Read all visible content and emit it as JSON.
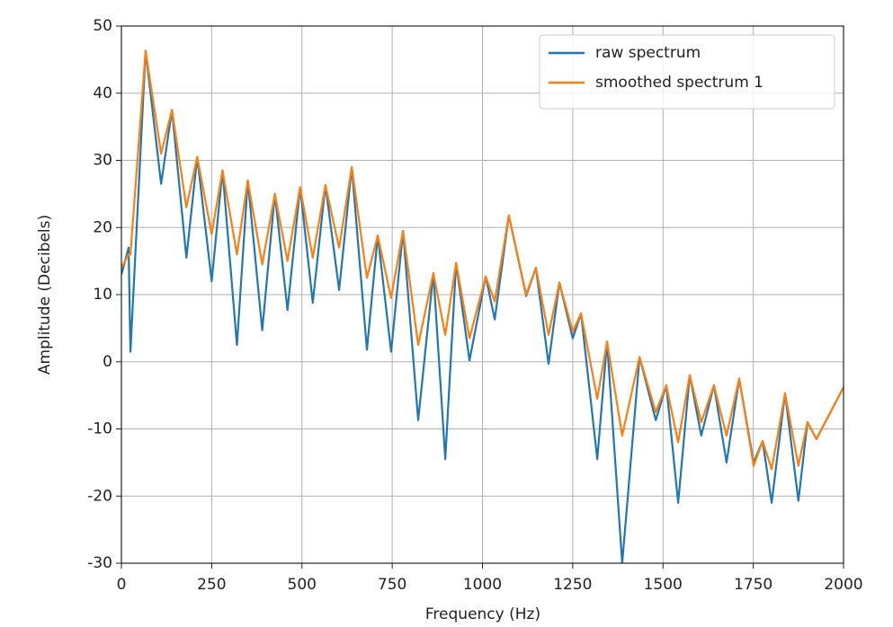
{
  "chart_data": {
    "type": "line",
    "xlabel": "Frequency (Hz)",
    "ylabel": "Amplitude (Decibels)",
    "x": [
      0,
      20,
      25,
      67,
      110,
      140,
      180,
      210,
      250,
      280,
      320,
      350,
      390,
      425,
      460,
      495,
      530,
      565,
      603,
      638,
      680,
      710,
      747,
      780,
      822,
      864,
      897,
      927,
      964,
      1009,
      1034,
      1073,
      1121,
      1148,
      1183,
      1213,
      1250,
      1273,
      1318,
      1345,
      1387,
      1435,
      1480,
      1509,
      1542,
      1574,
      1606,
      1641,
      1676,
      1711,
      1751,
      1776,
      1801,
      1838,
      1875,
      1900,
      1925,
      2000
    ],
    "series": [
      {
        "name": "raw spectrum",
        "color": "#1f77b4",
        "values": [
          13,
          17,
          1.5,
          46.3,
          26.5,
          37.5,
          15.5,
          30.5,
          12,
          28.5,
          2.5,
          27,
          4.7,
          25,
          7.7,
          26,
          8.8,
          26.3,
          10.7,
          29,
          1.8,
          18.8,
          1.5,
          19.5,
          -8.7,
          13.2,
          -14.5,
          14.7,
          0.2,
          12.7,
          6.3,
          21.8,
          9.8,
          14,
          -0.3,
          11.8,
          3.5,
          7.2,
          -14.5,
          3,
          -30,
          0.7,
          -8.7,
          -3.5,
          -21,
          -2,
          -11,
          -3.5,
          -15,
          -2.5,
          -15,
          -11.8,
          -21,
          -4.7,
          -20.7,
          -9,
          -11.5,
          -3.8
        ]
      },
      {
        "name": "smoothed spectrum 1",
        "color": "#ff7f0e",
        "values": [
          14,
          16,
          16,
          46.3,
          31,
          37.5,
          23,
          30.5,
          19,
          28.5,
          16,
          27,
          14.5,
          25,
          15,
          26,
          15.5,
          26.3,
          17,
          29,
          12.5,
          18.8,
          9.5,
          19.5,
          2.5,
          13.2,
          4,
          14.7,
          3.5,
          12.7,
          9,
          21.8,
          10,
          14,
          4,
          11.8,
          4.5,
          7.2,
          -5.5,
          3,
          -11,
          0.7,
          -7.5,
          -3.5,
          -12,
          -2,
          -9,
          -3.5,
          -11,
          -2.5,
          -15.5,
          -11.8,
          -16,
          -4.7,
          -15.5,
          -9,
          -11.5,
          -3.8
        ]
      }
    ],
    "xlim": [
      0,
      2000
    ],
    "xticks": [
      0,
      250,
      500,
      750,
      1000,
      1250,
      1500,
      1750,
      2000
    ],
    "ylim": [
      -30,
      50
    ],
    "yticks": [
      -30,
      -20,
      -10,
      0,
      10,
      20,
      30,
      40,
      50
    ],
    "grid": true,
    "legend": "upper right"
  }
}
